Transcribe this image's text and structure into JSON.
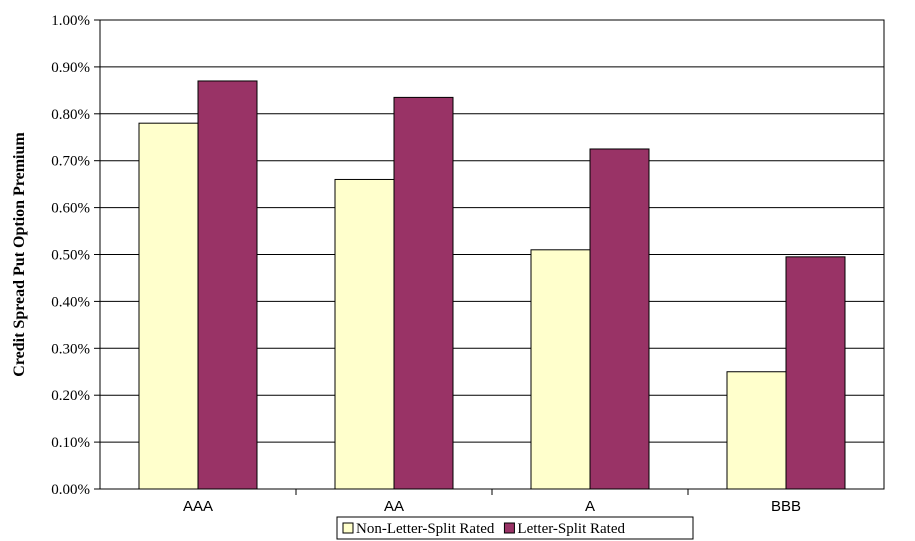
{
  "chart_data": {
    "type": "bar",
    "title": "",
    "xlabel": "",
    "ylabel": "Credit Spread Put Option Premium",
    "categories": [
      "AAA",
      "AA",
      "A",
      "BBB"
    ],
    "series": [
      {
        "name": "Non-Letter-Split Rated",
        "color": "#ffffcc",
        "values": [
          0.78,
          0.66,
          0.51,
          0.25
        ]
      },
      {
        "name": "Letter-Split Rated",
        "color": "#993366",
        "values": [
          0.87,
          0.835,
          0.725,
          0.495
        ]
      }
    ],
    "ylim": [
      0,
      1.0
    ],
    "yticks": [
      "0.00%",
      "0.10%",
      "0.20%",
      "0.30%",
      "0.40%",
      "0.50%",
      "0.60%",
      "0.70%",
      "0.80%",
      "0.90%",
      "1.00%"
    ],
    "grid": true,
    "legend_position": "bottom"
  }
}
